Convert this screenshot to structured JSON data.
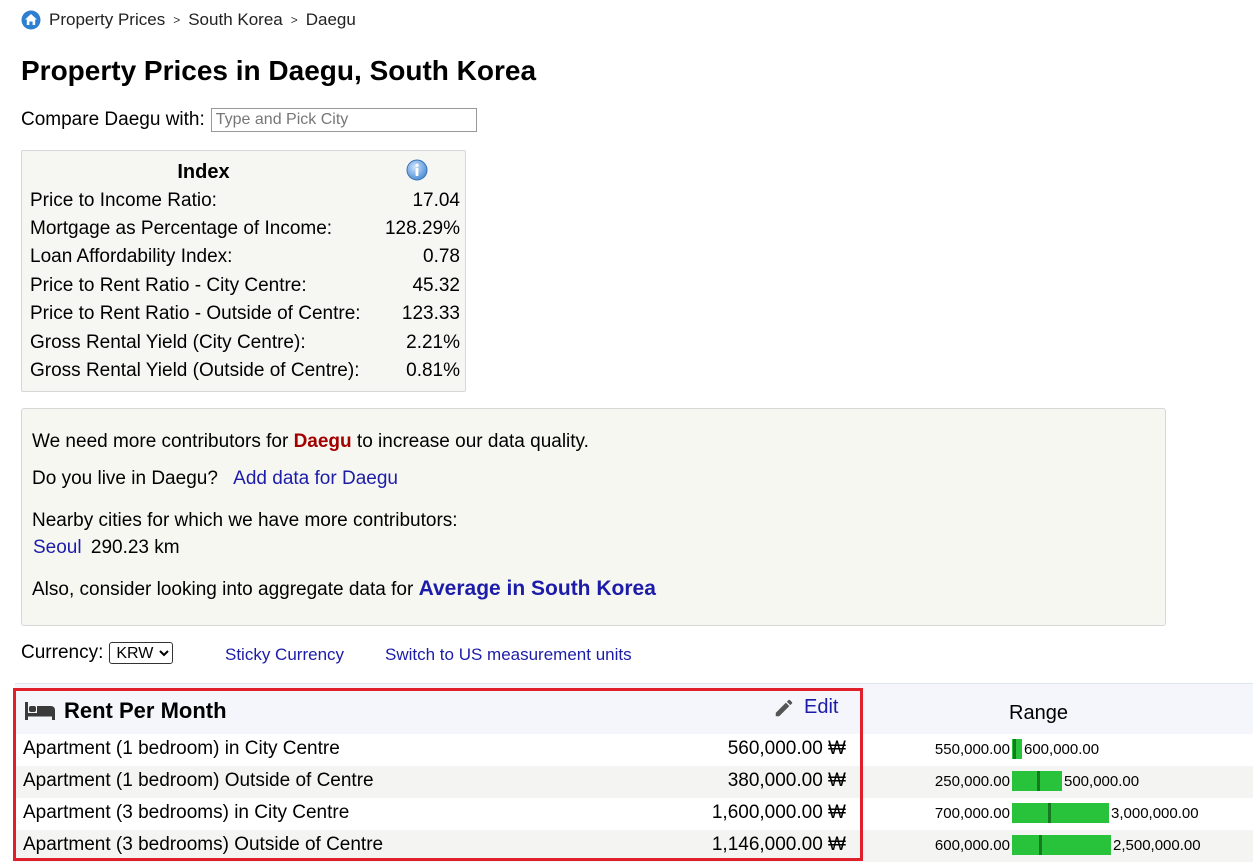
{
  "breadcrumb": {
    "items": [
      "Property Prices",
      "South Korea",
      "Daegu"
    ],
    "separator": ">"
  },
  "page": {
    "title": "Property Prices in Daegu, South Korea"
  },
  "compare": {
    "label": "Compare Daegu with:",
    "placeholder": "Type and Pick City"
  },
  "index": {
    "heading": "Index",
    "rows": [
      {
        "label": "Price to Income Ratio:",
        "value": "17.04"
      },
      {
        "label": "Mortgage as Percentage of Income:",
        "value": "128.29%"
      },
      {
        "label": "Loan Affordability Index:",
        "value": "0.78"
      },
      {
        "label": "Price to Rent Ratio - City Centre:",
        "value": "45.32"
      },
      {
        "label": "Price to Rent Ratio - Outside of Centre:",
        "value": "123.33"
      },
      {
        "label": "Gross Rental Yield (City Centre):",
        "value": "2.21%"
      },
      {
        "label": "Gross Rental Yield (Outside of Centre):",
        "value": "0.81%"
      }
    ]
  },
  "contributors": {
    "line1_pre": "We need more contributors for",
    "city": "Daegu",
    "line1_post": "to increase our data quality.",
    "live_question": "Do you live in Daegu?",
    "add_data_link": "Add data for Daegu",
    "nearby_text": "Nearby cities for which we have more contributors:",
    "nearby_city": "Seoul",
    "nearby_distance": "290.23 km",
    "aggregate_text": "Also, consider looking into aggregate data for",
    "aggregate_link": "Average in South Korea"
  },
  "currency": {
    "label": "Currency:",
    "selected": "KRW",
    "sticky_link": "Sticky Currency",
    "units_link": "Switch to US measurement units"
  },
  "rent_table": {
    "title": "Rent Per Month",
    "edit_label": "Edit",
    "range_header": "Range",
    "rows": [
      {
        "label": "Apartment (1 bedroom) in City Centre",
        "price": "560,000.00 ₩",
        "min": "550,000.00",
        "max": "600,000.00",
        "mark": 0.2
      },
      {
        "label": "Apartment (1 bedroom) Outside of Centre",
        "price": "380,000.00 ₩",
        "min": "250,000.00",
        "max": "500,000.00",
        "mark": 0.52
      },
      {
        "label": "Apartment (3 bedrooms) in City Centre",
        "price": "1,600,000.00 ₩",
        "min": "700,000.00",
        "max": "3,000,000.00",
        "mark": 0.39
      },
      {
        "label": "Apartment (3 bedrooms) Outside of Centre",
        "price": "1,146,000.00 ₩",
        "min": "600,000.00",
        "max": "2,500,000.00",
        "mark": 0.29
      }
    ]
  },
  "colors": {
    "link": "#1c1ca8",
    "city_highlight": "#a30000",
    "range_bar": "#28c23b",
    "range_marker": "#16781f",
    "selection_box": "#e0202b"
  }
}
